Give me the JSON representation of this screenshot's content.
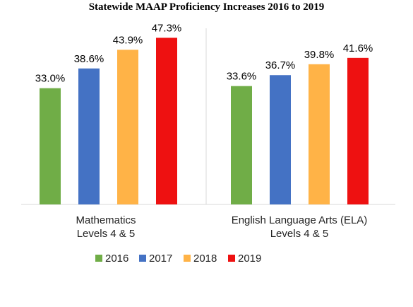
{
  "chart_data": {
    "type": "bar",
    "title": "Statewide MAAP Proficiency Increases 2016 to 2019",
    "categories": [
      [
        "Mathematics",
        "Levels 4 & 5"
      ],
      [
        "English Language Arts (ELA)",
        "Levels 4 & 5"
      ]
    ],
    "series": [
      {
        "name": "2016",
        "color": "#70ad47",
        "values": [
          33.0,
          33.6
        ],
        "labels": [
          "33.0%",
          "33.6%"
        ]
      },
      {
        "name": "2017",
        "color": "#4472c4",
        "values": [
          38.6,
          36.7
        ],
        "labels": [
          "38.6%",
          "36.7%"
        ]
      },
      {
        "name": "2018",
        "color": "#ffb347",
        "values": [
          43.9,
          39.8
        ],
        "labels": [
          "43.9%",
          "39.8%"
        ]
      },
      {
        "name": "2019",
        "color": "#ee1111",
        "values": [
          47.3,
          41.6
        ],
        "labels": [
          "47.3%",
          "41.6%"
        ]
      }
    ],
    "ylim": [
      0,
      50
    ],
    "value_format": "percent",
    "grid": false,
    "legend_position": "bottom"
  }
}
